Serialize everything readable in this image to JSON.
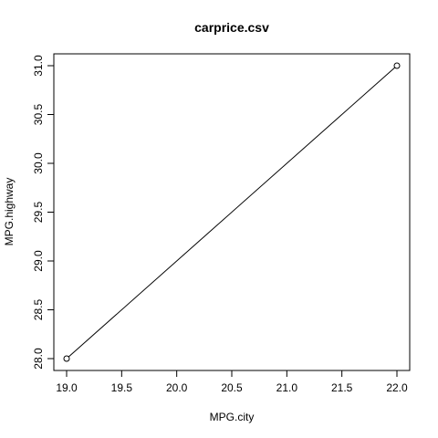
{
  "chart_data": {
    "type": "line",
    "title": "carprice.csv",
    "xlabel": "MPG.city",
    "ylabel": "MPG.highway",
    "x": [
      19.0,
      22.0
    ],
    "series": [
      {
        "values": [
          28.0,
          31.0
        ],
        "marker": "open-circle"
      }
    ],
    "xlim": [
      19.0,
      22.0
    ],
    "ylim": [
      28.0,
      31.0
    ],
    "xticks": [
      "19.0",
      "19.5",
      "20.0",
      "20.5",
      "21.0",
      "21.5",
      "22.0"
    ],
    "yticks": [
      "28.0",
      "28.5",
      "29.0",
      "29.5",
      "30.0",
      "30.5",
      "31.0"
    ],
    "grid": false,
    "colors": {
      "line": "#000000",
      "axis": "#000000",
      "background": "#ffffff"
    }
  }
}
